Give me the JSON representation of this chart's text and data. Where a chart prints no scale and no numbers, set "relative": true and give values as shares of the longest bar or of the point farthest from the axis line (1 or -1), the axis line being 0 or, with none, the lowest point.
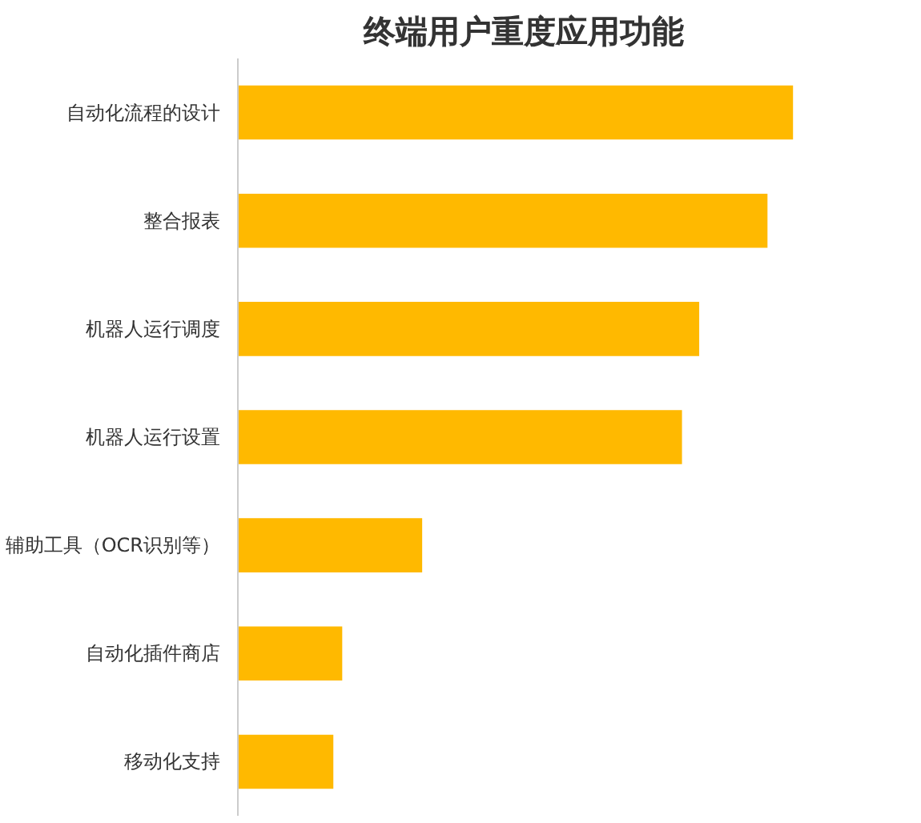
{
  "chart_data": {
    "type": "bar",
    "orientation": "horizontal",
    "relative": true,
    "title": "终端用户重度应用功能",
    "categories": [
      "自动化流程的设计",
      "整合报表",
      "机器人运行调度",
      "机器人运行设置",
      "辅助工具（OCR识别等）",
      "自动化插件商店",
      "移动化支持"
    ],
    "values": [
      1,
      0.954,
      0.831,
      0.8,
      0.332,
      0.188,
      0.172
    ],
    "color": "#ffb900",
    "grid": false
  }
}
